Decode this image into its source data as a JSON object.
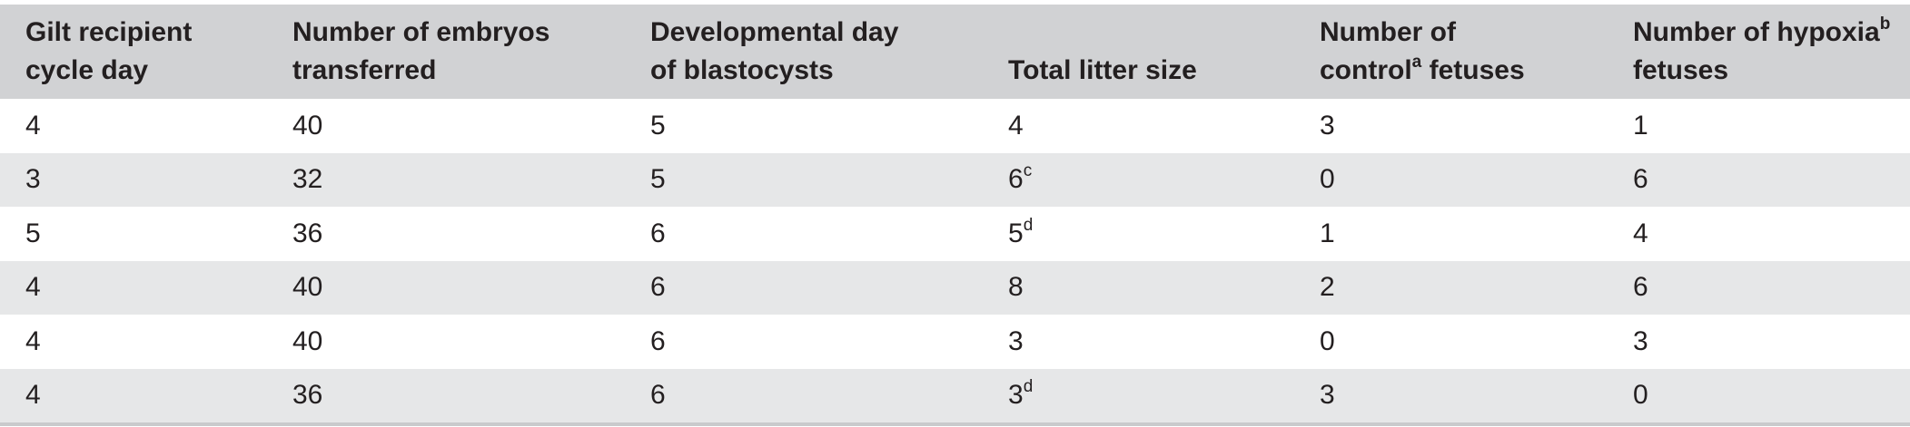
{
  "table": {
    "headers": [
      {
        "line1": "Gilt recipient",
        "line2": "cycle day"
      },
      {
        "line1": "Number of embryos",
        "line2": "transferred"
      },
      {
        "line1": "Developmental day",
        "line2": "of blastocysts"
      },
      {
        "line1": "",
        "line2": "Total litter size"
      },
      {
        "line1": "Number of",
        "line2_pre": "control",
        "line2_sup": "a",
        "line2_post": " fetuses"
      },
      {
        "line1_pre": "Number of hypoxia",
        "line1_sup": "b",
        "line2": "fetuses"
      }
    ],
    "rows": [
      {
        "cycle_day": "4",
        "embryos": "40",
        "dev_day": "5",
        "litter": "4",
        "litter_sup": "",
        "control": "3",
        "hypoxia": "1"
      },
      {
        "cycle_day": "3",
        "embryos": "32",
        "dev_day": "5",
        "litter": "6",
        "litter_sup": "c",
        "control": "0",
        "hypoxia": "6"
      },
      {
        "cycle_day": "5",
        "embryos": "36",
        "dev_day": "6",
        "litter": "5",
        "litter_sup": "d",
        "control": "1",
        "hypoxia": "4"
      },
      {
        "cycle_day": "4",
        "embryos": "40",
        "dev_day": "6",
        "litter": "8",
        "litter_sup": "",
        "control": "2",
        "hypoxia": "6"
      },
      {
        "cycle_day": "4",
        "embryos": "40",
        "dev_day": "6",
        "litter": "3",
        "litter_sup": "",
        "control": "0",
        "hypoxia": "3"
      },
      {
        "cycle_day": "4",
        "embryos": "36",
        "dev_day": "6",
        "litter": "3",
        "litter_sup": "d",
        "control": "3",
        "hypoxia": "0"
      }
    ]
  },
  "colors": {
    "header_bg": "#d1d2d4",
    "stripe_bg": "#e6e7e8",
    "text": "#231f20"
  }
}
